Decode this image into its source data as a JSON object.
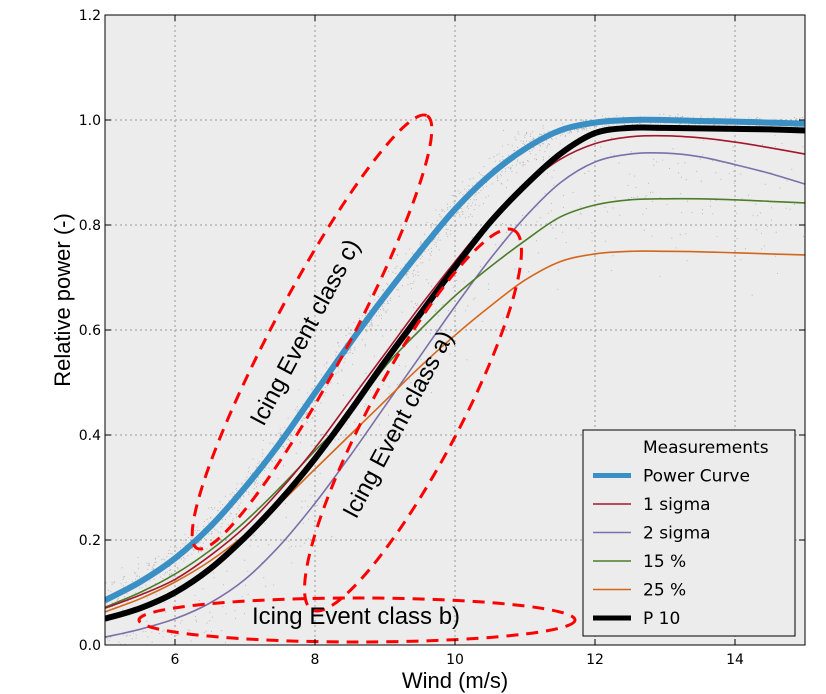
{
  "chart_data": {
    "type": "line",
    "xlabel": "Wind (m/s)",
    "ylabel": "Relative power (-)",
    "xlim": [
      5,
      15
    ],
    "ylim": [
      0,
      1.2
    ],
    "xticks": [
      6,
      8,
      10,
      12,
      14
    ],
    "yticks": [
      0.0,
      0.2,
      0.4,
      0.6,
      0.8,
      1.0,
      1.2
    ],
    "xtick_labels": [
      "6",
      "8",
      "10",
      "12",
      "14"
    ],
    "ytick_labels": [
      "0.0",
      "0.2",
      "0.4",
      "0.6",
      "0.8",
      "1.0",
      "1.2"
    ],
    "grid": true,
    "legend_position": "bottom-right",
    "colors": {
      "power_curve": "#3a8fc4",
      "sigma1": "#a4162b",
      "sigma2": "#7b70a8",
      "p15": "#4c7d2a",
      "p25": "#d4661c",
      "p10": "#000000",
      "measurements": "#7a7a7a",
      "annotation": "#ff0000",
      "plot_background": "#ececec"
    },
    "series": [
      {
        "name": "Measurements",
        "kind": "scatter"
      },
      {
        "name": "Power Curve",
        "x": [
          5,
          5.5,
          6,
          6.5,
          7,
          7.5,
          8,
          8.5,
          9,
          9.5,
          10,
          10.5,
          11,
          11.5,
          12,
          12.5,
          13,
          13.5,
          14,
          14.5,
          15
        ],
        "values": [
          0.085,
          0.12,
          0.165,
          0.225,
          0.3,
          0.385,
          0.48,
          0.575,
          0.665,
          0.75,
          0.83,
          0.895,
          0.945,
          0.98,
          0.995,
          1.0,
          1.0,
          0.998,
          0.997,
          0.995,
          0.993
        ]
      },
      {
        "name": "1 sigma",
        "x": [
          5,
          5.5,
          6,
          6.5,
          7,
          7.5,
          8,
          8.5,
          9,
          9.5,
          10,
          10.5,
          11,
          11.5,
          12,
          12.5,
          13,
          13.5,
          14,
          14.5,
          15
        ],
        "values": [
          0.07,
          0.095,
          0.125,
          0.17,
          0.225,
          0.295,
          0.375,
          0.465,
          0.555,
          0.645,
          0.73,
          0.81,
          0.875,
          0.925,
          0.955,
          0.968,
          0.97,
          0.966,
          0.958,
          0.947,
          0.935
        ]
      },
      {
        "name": "2 sigma",
        "x": [
          5,
          5.5,
          6,
          6.5,
          7,
          7.5,
          8,
          8.5,
          9,
          9.5,
          10,
          10.5,
          11,
          11.5,
          12,
          12.5,
          13,
          13.5,
          14,
          14.5,
          15
        ],
        "values": [
          0.015,
          0.03,
          0.05,
          0.08,
          0.125,
          0.19,
          0.27,
          0.36,
          0.455,
          0.55,
          0.645,
          0.735,
          0.815,
          0.88,
          0.92,
          0.935,
          0.937,
          0.93,
          0.915,
          0.898,
          0.878
        ]
      },
      {
        "name": "15 %",
        "x": [
          5,
          5.5,
          6,
          6.5,
          7,
          7.5,
          8,
          8.5,
          9,
          9.5,
          10,
          10.5,
          11,
          11.5,
          12,
          12.5,
          13,
          13.5,
          14,
          14.5,
          15
        ],
        "values": [
          0.072,
          0.1,
          0.135,
          0.18,
          0.235,
          0.3,
          0.37,
          0.44,
          0.53,
          0.6,
          0.665,
          0.72,
          0.77,
          0.815,
          0.838,
          0.848,
          0.85,
          0.85,
          0.848,
          0.845,
          0.842
        ]
      },
      {
        "name": "25 %",
        "x": [
          5,
          5.5,
          6,
          6.5,
          7,
          7.5,
          8,
          8.5,
          9,
          9.5,
          10,
          10.5,
          11,
          11.5,
          12,
          12.5,
          13,
          13.5,
          14,
          14.5,
          15
        ],
        "values": [
          0.063,
          0.088,
          0.12,
          0.16,
          0.21,
          0.27,
          0.335,
          0.4,
          0.465,
          0.53,
          0.59,
          0.645,
          0.695,
          0.73,
          0.745,
          0.75,
          0.75,
          0.749,
          0.747,
          0.745,
          0.743
        ]
      },
      {
        "name": "P 10",
        "x": [
          5,
          5.5,
          6,
          6.5,
          7,
          7.5,
          8,
          8.5,
          9,
          9.5,
          10,
          10.5,
          11,
          11.5,
          12,
          12.5,
          13,
          13.5,
          14,
          14.5,
          15
        ],
        "values": [
          0.05,
          0.07,
          0.1,
          0.145,
          0.205,
          0.275,
          0.355,
          0.445,
          0.54,
          0.63,
          0.72,
          0.805,
          0.875,
          0.935,
          0.975,
          0.985,
          0.985,
          0.984,
          0.983,
          0.982,
          0.98
        ]
      }
    ],
    "annotations": [
      {
        "text": "Icing Event class c)",
        "rotation": -62
      },
      {
        "text": "Icing  Event class a)",
        "rotation": -62
      },
      {
        "text": "Icing Event class b)",
        "rotation": 0
      }
    ]
  }
}
